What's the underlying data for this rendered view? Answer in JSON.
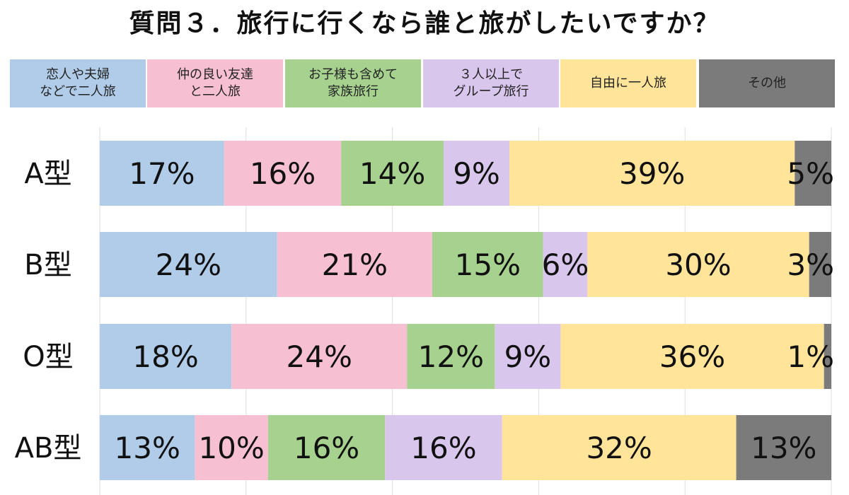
{
  "chart_data": {
    "type": "bar",
    "orientation": "horizontal",
    "stacked": true,
    "normalized": true,
    "title": "質問３．旅行に行くなら誰と旅がしたいですか？",
    "categories": [
      "A型",
      "B型",
      "O型",
      "AB型"
    ],
    "series": [
      {
        "name": "恋人や夫婦\nなどで二人旅",
        "color": "#b0cce8",
        "values": [
          17,
          24,
          18,
          13
        ]
      },
      {
        "name": "仲の良い友達\nと二人旅",
        "color": "#f6c0d2",
        "values": [
          16,
          21,
          24,
          10
        ]
      },
      {
        "name": "お子様も含めて\n家族旅行",
        "color": "#a7d18f",
        "values": [
          14,
          15,
          12,
          16
        ]
      },
      {
        "name": "３人以上で\nグループ旅行",
        "color": "#d9c6ec",
        "values": [
          9,
          6,
          9,
          16
        ]
      },
      {
        "name": "自由に一人旅",
        "color": "#ffe49a",
        "values": [
          39,
          30,
          36,
          32
        ]
      },
      {
        "name": "その他",
        "color": "#7b7b7b",
        "values": [
          5,
          3,
          1,
          13
        ]
      }
    ],
    "value_suffix": "%",
    "legend_position": "top",
    "grid": true
  }
}
